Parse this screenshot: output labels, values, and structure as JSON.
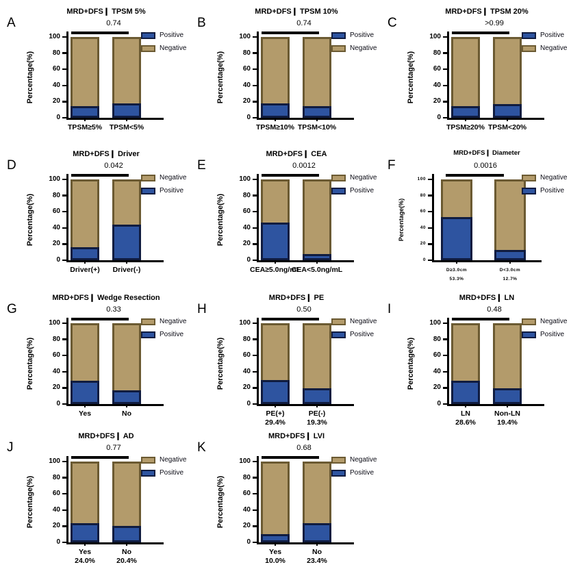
{
  "figure": {
    "ylabel": "Percentage(%)",
    "yticks": [
      "0",
      "20",
      "40",
      "60",
      "80",
      "100"
    ],
    "series_names": {
      "positive": "Positive",
      "negative": "Negative"
    },
    "colors": {
      "positive_fill": "#2E54A0",
      "positive_border": "#101C40",
      "negative_fill": "#B39B6B",
      "negative_border": "#6B5A32",
      "axis": "#000000",
      "background": "#FFFFFF"
    }
  },
  "chart_data": [
    {
      "letter": "A",
      "type": "stacked_bar",
      "title": "MRD+DFS❙ TPSM 5%",
      "p_value": "0.74",
      "legend_order": [
        "Positive",
        "Negative"
      ],
      "categories": [
        "TPSM≥5%",
        "TPSM<5%"
      ],
      "sublabels": null,
      "ylim": [
        0,
        100
      ],
      "series": [
        {
          "name": "Positive",
          "values": [
            14,
            18
          ]
        },
        {
          "name": "Negative",
          "values": [
            86,
            82
          ]
        }
      ]
    },
    {
      "letter": "B",
      "type": "stacked_bar",
      "title": "MRD+DFS❙ TPSM 10%",
      "p_value": "0.74",
      "legend_order": [
        "Positive",
        "Negative"
      ],
      "categories": [
        "TPSM≥10%",
        "TPSM<10%"
      ],
      "sublabels": null,
      "ylim": [
        0,
        100
      ],
      "series": [
        {
          "name": "Positive",
          "values": [
            18,
            14
          ]
        },
        {
          "name": "Negative",
          "values": [
            82,
            86
          ]
        }
      ]
    },
    {
      "letter": "C",
      "type": "stacked_bar",
      "title": "MRD+DFS❙ TPSM 20%",
      "p_value": ">0.99",
      "legend_order": [
        "Positive",
        "Negative"
      ],
      "categories": [
        "TPSM≥20%",
        "TPSM<20%"
      ],
      "sublabels": null,
      "ylim": [
        0,
        100
      ],
      "series": [
        {
          "name": "Positive",
          "values": [
            14,
            17
          ]
        },
        {
          "name": "Negative",
          "values": [
            86,
            83
          ]
        }
      ]
    },
    {
      "letter": "D",
      "type": "stacked_bar",
      "title": "MRD+DFS❙ Driver",
      "p_value": "0.042",
      "legend_order": [
        "Negative",
        "Positive"
      ],
      "categories": [
        "Driver(+)",
        "Driver(-)"
      ],
      "sublabels": null,
      "ylim": [
        0,
        100
      ],
      "series": [
        {
          "name": "Positive",
          "values": [
            16,
            44
          ]
        },
        {
          "name": "Negative",
          "values": [
            84,
            56
          ]
        }
      ]
    },
    {
      "letter": "E",
      "type": "stacked_bar",
      "title": "MRD+DFS❙ CEA",
      "p_value": "0.0012",
      "legend_order": [
        "Negative",
        "Positive"
      ],
      "categories": [
        "CEA≥5.0ng/mL",
        "CEA<5.0ng/mL"
      ],
      "sublabels": null,
      "ylim": [
        0,
        100
      ],
      "series": [
        {
          "name": "Positive",
          "values": [
            47,
            8
          ]
        },
        {
          "name": "Negative",
          "values": [
            53,
            92
          ]
        }
      ]
    },
    {
      "letter": "F",
      "type": "stacked_bar",
      "title": "MRD+DFS❙ Diameter",
      "p_value": "0.0016",
      "legend_order": [
        "Negative",
        "Positive"
      ],
      "categories": [
        "D≥3.0cm",
        "D<3.0cm"
      ],
      "sublabels": [
        "53.3%",
        "12.7%"
      ],
      "ylim": [
        0,
        100
      ],
      "small": true,
      "series": [
        {
          "name": "Positive",
          "values": [
            53.3,
            12.7
          ]
        },
        {
          "name": "Negative",
          "values": [
            46.7,
            87.3
          ]
        }
      ]
    },
    {
      "letter": "G",
      "type": "stacked_bar",
      "title": "MRD+DFS❙ Wedge Resection",
      "p_value": "0.33",
      "legend_order": [
        "Negative",
        "Positive"
      ],
      "categories": [
        "Yes",
        "No"
      ],
      "sublabels": null,
      "ylim": [
        0,
        100
      ],
      "series": [
        {
          "name": "Positive",
          "values": [
            29,
            17
          ]
        },
        {
          "name": "Negative",
          "values": [
            71,
            83
          ]
        }
      ]
    },
    {
      "letter": "H",
      "type": "stacked_bar",
      "title": "MRD+DFS❙ PE",
      "p_value": "0.50",
      "legend_order": [
        "Negative",
        "Positive"
      ],
      "categories": [
        "PE(+)",
        "PE(-)"
      ],
      "sublabels": [
        "29.4%",
        "19.3%"
      ],
      "ylim": [
        0,
        100
      ],
      "series": [
        {
          "name": "Positive",
          "values": [
            29.4,
            19.3
          ]
        },
        {
          "name": "Negative",
          "values": [
            70.6,
            80.7
          ]
        }
      ]
    },
    {
      "letter": "I",
      "type": "stacked_bar",
      "title": "MRD+DFS❙ LN",
      "p_value": "0.48",
      "legend_order": [
        "Negative",
        "Positive"
      ],
      "categories": [
        "LN",
        "Non-LN"
      ],
      "sublabels": [
        "28.6%",
        "19.4%"
      ],
      "ylim": [
        0,
        100
      ],
      "series": [
        {
          "name": "Positive",
          "values": [
            28.6,
            19.4
          ]
        },
        {
          "name": "Negative",
          "values": [
            71.4,
            80.6
          ]
        }
      ]
    },
    {
      "letter": "J",
      "type": "stacked_bar",
      "title": "MRD+DFS❙ AD",
      "p_value": "0.77",
      "legend_order": [
        "Negative",
        "Positive"
      ],
      "categories": [
        "Yes",
        "No"
      ],
      "sublabels": [
        "24.0%",
        "20.4%"
      ],
      "ylim": [
        0,
        100
      ],
      "series": [
        {
          "name": "Positive",
          "values": [
            24,
            20.4
          ]
        },
        {
          "name": "Negative",
          "values": [
            76,
            79.6
          ]
        }
      ]
    },
    {
      "letter": "K",
      "type": "stacked_bar",
      "title": "MRD+DFS❙ LVI",
      "p_value": "0.68",
      "legend_order": [
        "Negative",
        "Positive"
      ],
      "categories": [
        "Yes",
        "No"
      ],
      "sublabels": [
        "10.0%",
        "23.4%"
      ],
      "ylim": [
        0,
        100
      ],
      "series": [
        {
          "name": "Positive",
          "values": [
            10,
            23.4
          ]
        },
        {
          "name": "Negative",
          "values": [
            90,
            76.6
          ]
        }
      ]
    }
  ]
}
